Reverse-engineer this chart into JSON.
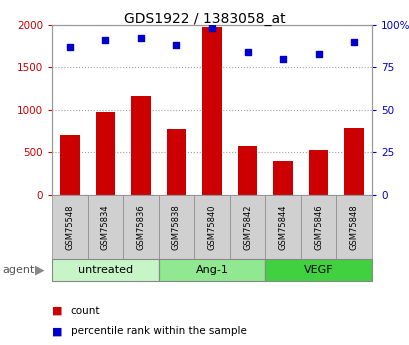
{
  "title": "GDS1922 / 1383058_at",
  "samples": [
    "GSM75548",
    "GSM75834",
    "GSM75836",
    "GSM75838",
    "GSM75840",
    "GSM75842",
    "GSM75844",
    "GSM75846",
    "GSM75848"
  ],
  "counts": [
    700,
    980,
    1160,
    770,
    1980,
    570,
    400,
    530,
    790
  ],
  "percentiles": [
    87,
    91,
    92,
    88,
    98,
    84,
    80,
    83,
    90
  ],
  "groups": [
    {
      "label": "untreated",
      "indices": [
        0,
        1,
        2
      ],
      "color": "#c8f5c8"
    },
    {
      "label": "Ang-1",
      "indices": [
        3,
        4,
        5
      ],
      "color": "#90e890"
    },
    {
      "label": "VEGF",
      "indices": [
        6,
        7,
        8
      ],
      "color": "#40d040"
    }
  ],
  "bar_color": "#cc0000",
  "dot_color": "#0000cc",
  "left_ylim": [
    0,
    2000
  ],
  "right_ylim": [
    0,
    100
  ],
  "left_yticks": [
    0,
    500,
    1000,
    1500,
    2000
  ],
  "right_yticks": [
    0,
    25,
    50,
    75,
    100
  ],
  "right_yticklabels": [
    "0",
    "25",
    "50",
    "75",
    "100%"
  ],
  "grid_color": "#a0a0a0",
  "bg_color": "#ffffff",
  "plot_bg": "#ffffff",
  "agent_label": "agent",
  "legend_count": "count",
  "legend_percentile": "percentile rank within the sample",
  "sample_box_color": "#d0d0d0"
}
